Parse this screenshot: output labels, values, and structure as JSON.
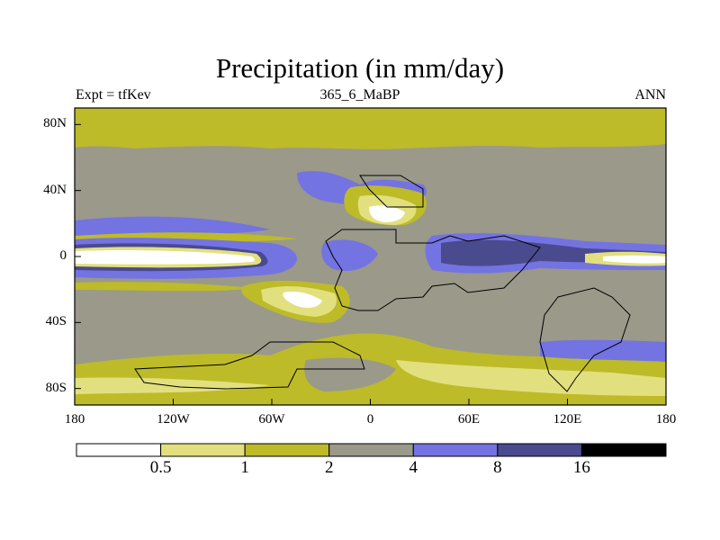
{
  "header": {
    "title": "Precipitation (in mm/day)",
    "left": "Expt = tfKev",
    "center": "365_6_MaBP",
    "right": "ANN"
  },
  "axes": {
    "y_ticks": [
      {
        "label": "80N",
        "value": 80
      },
      {
        "label": "40N",
        "value": 40
      },
      {
        "label": "0",
        "value": 0
      },
      {
        "label": "40S",
        "value": -40
      },
      {
        "label": "80S",
        "value": -80
      }
    ],
    "x_ticks": [
      {
        "label": "180",
        "value": -180
      },
      {
        "label": "120W",
        "value": -120
      },
      {
        "label": "60W",
        "value": -60
      },
      {
        "label": "0",
        "value": 0
      },
      {
        "label": "60E",
        "value": 60
      },
      {
        "label": "120E",
        "value": 120
      },
      {
        "label": "180",
        "value": 180
      }
    ]
  },
  "colorbar": {
    "colors": [
      "#ffffff",
      "#e2e07e",
      "#bdbb28",
      "#9a998a",
      "#7373e2",
      "#4a4a8e",
      "#000000"
    ],
    "labels": [
      "0.5",
      "1",
      "2",
      "4",
      "8",
      "16"
    ]
  },
  "map_colors": {
    "white": "#ffffff",
    "light_yellow": "#e2e07e",
    "yellow": "#bdbb28",
    "gray": "#9a998a",
    "blue": "#7373e2",
    "dark_blue": "#4a4a8e"
  }
}
